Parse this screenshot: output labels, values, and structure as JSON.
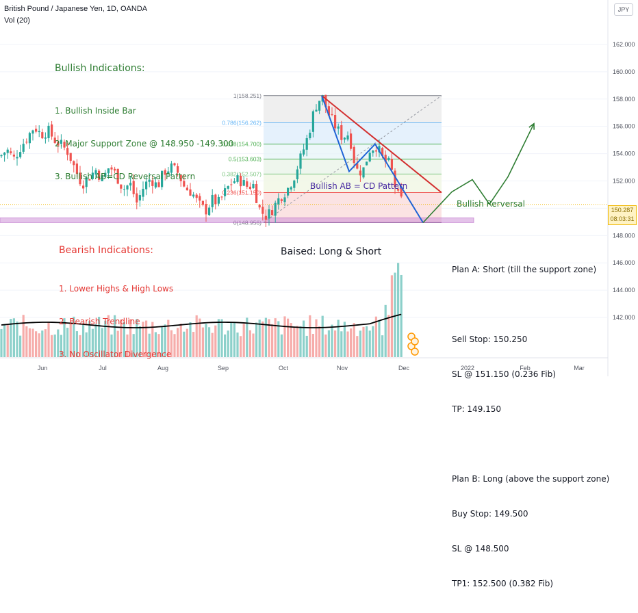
{
  "header": {
    "instrument": "British Pound / Japanese Yen, 1D, OANDA",
    "volume_label": "Vol (20)",
    "currency_button": "JPY"
  },
  "price_axis": {
    "last_price": "150.287",
    "countdown": "08:03:31"
  },
  "annotations": {
    "bullish_title": "Bullish Indications:",
    "bullish_items": [
      "1. Bullish Inside Bar",
      "2. Major Support Zone @ 148.950 -149.300",
      "3. Bullish AB=CD Reversal Pattern"
    ],
    "bearish_title": "Bearish Indications:",
    "bearish_items": [
      "1. Lower Highs & High Lows",
      "2. Bearish Trendline",
      "3. No Oscillator Divergence"
    ],
    "bias": "Baised: Long & Short",
    "pattern_label": "Bullish AB = CD Pattern",
    "reversal_label": "Bullish Rerversal"
  },
  "plans": {
    "plan_a_title": "Plan A: Short (till the support zone)",
    "plan_a_lines": [
      "Sell Stop: 150.250",
      "SL @ 151.150 (0.236 Fib)",
      "TP: 149.150"
    ],
    "plan_b_title": "Plan B: Long (above the support zone)",
    "plan_b_lines": [
      "Buy Stop: 149.500",
      "SL @ 148.500",
      "TP1: 152.500 (0.382 Fib)"
    ]
  },
  "colors": {
    "up": "#26a69a",
    "down": "#ef5350",
    "trend": "#d32f2f",
    "abcd": "#1e63d6",
    "projection": "#2e7d32",
    "zone": "#ce93d8",
    "ma": "#000000"
  },
  "chart_data": {
    "type": "candlestick",
    "y_axis": {
      "range": [
        140.5,
        163.3
      ],
      "ticks": [
        142,
        144,
        146,
        148,
        150,
        152,
        154,
        156,
        158,
        160,
        162
      ]
    },
    "x_axis": {
      "ticks": [
        "Jun",
        "Jul",
        "Aug",
        "Sep",
        "Oct",
        "Nov",
        "Dec",
        "2022",
        "Feb",
        "Mar"
      ]
    },
    "fib_levels": [
      {
        "ratio": "1",
        "price": 158.251,
        "label": "1(158.251)"
      },
      {
        "ratio": "0.786",
        "price": 156.262,
        "label": "0.786(156.262)"
      },
      {
        "ratio": "0.618",
        "price": 154.7,
        "label": "0.618(154.700)"
      },
      {
        "ratio": "0.5",
        "price": 153.603,
        "label": "0.5(153.603)"
      },
      {
        "ratio": "0.382",
        "price": 152.507,
        "label": "0.382(152.507)"
      },
      {
        "ratio": "0.236",
        "price": 151.15,
        "label": "0.236(151.150)"
      },
      {
        "ratio": "0",
        "price": 148.956,
        "label": "0(148.956)"
      }
    ],
    "support_zone": [
      148.95,
      149.3
    ],
    "price_path": [
      [
        0,
        153.8
      ],
      [
        10,
        154.3
      ],
      [
        20,
        153.6
      ],
      [
        30,
        154.5
      ],
      [
        40,
        155.2
      ],
      [
        50,
        156.0
      ],
      [
        60,
        155.4
      ],
      [
        70,
        155.7
      ],
      [
        80,
        155.0
      ],
      [
        90,
        154.6
      ],
      [
        100,
        154.1
      ],
      [
        110,
        152.8
      ],
      [
        120,
        151.8
      ],
      [
        130,
        152.3
      ],
      [
        140,
        152.8
      ],
      [
        150,
        152.1
      ],
      [
        160,
        153.1
      ],
      [
        170,
        152.4
      ],
      [
        180,
        151.4
      ],
      [
        190,
        151.8
      ],
      [
        200,
        150.4
      ],
      [
        210,
        151.6
      ],
      [
        220,
        152.2
      ],
      [
        230,
        151.6
      ],
      [
        240,
        152.7
      ],
      [
        250,
        153.0
      ],
      [
        260,
        152.6
      ],
      [
        270,
        151.5
      ],
      [
        280,
        151.2
      ],
      [
        290,
        150.3
      ],
      [
        300,
        149.8
      ],
      [
        310,
        150.6
      ],
      [
        320,
        150.4
      ],
      [
        330,
        151.3
      ],
      [
        340,
        152.0
      ],
      [
        350,
        152.1
      ],
      [
        360,
        151.6
      ],
      [
        370,
        151.7
      ],
      [
        380,
        149.8
      ],
      [
        390,
        149.4
      ],
      [
        400,
        150.1
      ],
      [
        410,
        150.9
      ],
      [
        420,
        151.4
      ],
      [
        430,
        152.4
      ],
      [
        440,
        153.8
      ],
      [
        450,
        155.3
      ],
      [
        460,
        157.4
      ],
      [
        470,
        158.25
      ],
      [
        480,
        156.9
      ],
      [
        490,
        156.0
      ],
      [
        500,
        155.2
      ],
      [
        510,
        155.5
      ],
      [
        520,
        152.8
      ],
      [
        530,
        152.7
      ],
      [
        540,
        154.3
      ],
      [
        550,
        154.6
      ],
      [
        560,
        153.5
      ],
      [
        570,
        153.2
      ],
      [
        580,
        151.0
      ],
      [
        590,
        150.3
      ]
    ],
    "abcd_points": [
      [
        470,
        158.25
      ],
      [
        510,
        152.7
      ],
      [
        548,
        154.7
      ],
      [
        618,
        148.95
      ]
    ],
    "trendline": [
      [
        470,
        158.25
      ],
      [
        645,
        151.15
      ]
    ],
    "projection": [
      [
        618,
        148.95
      ],
      [
        660,
        151.2
      ],
      [
        690,
        152.1
      ],
      [
        715,
        150.3
      ],
      [
        742,
        152.3
      ],
      [
        780,
        156.2
      ]
    ],
    "volume": {
      "ma_label": "Vol (20)",
      "bars": 130
    }
  }
}
